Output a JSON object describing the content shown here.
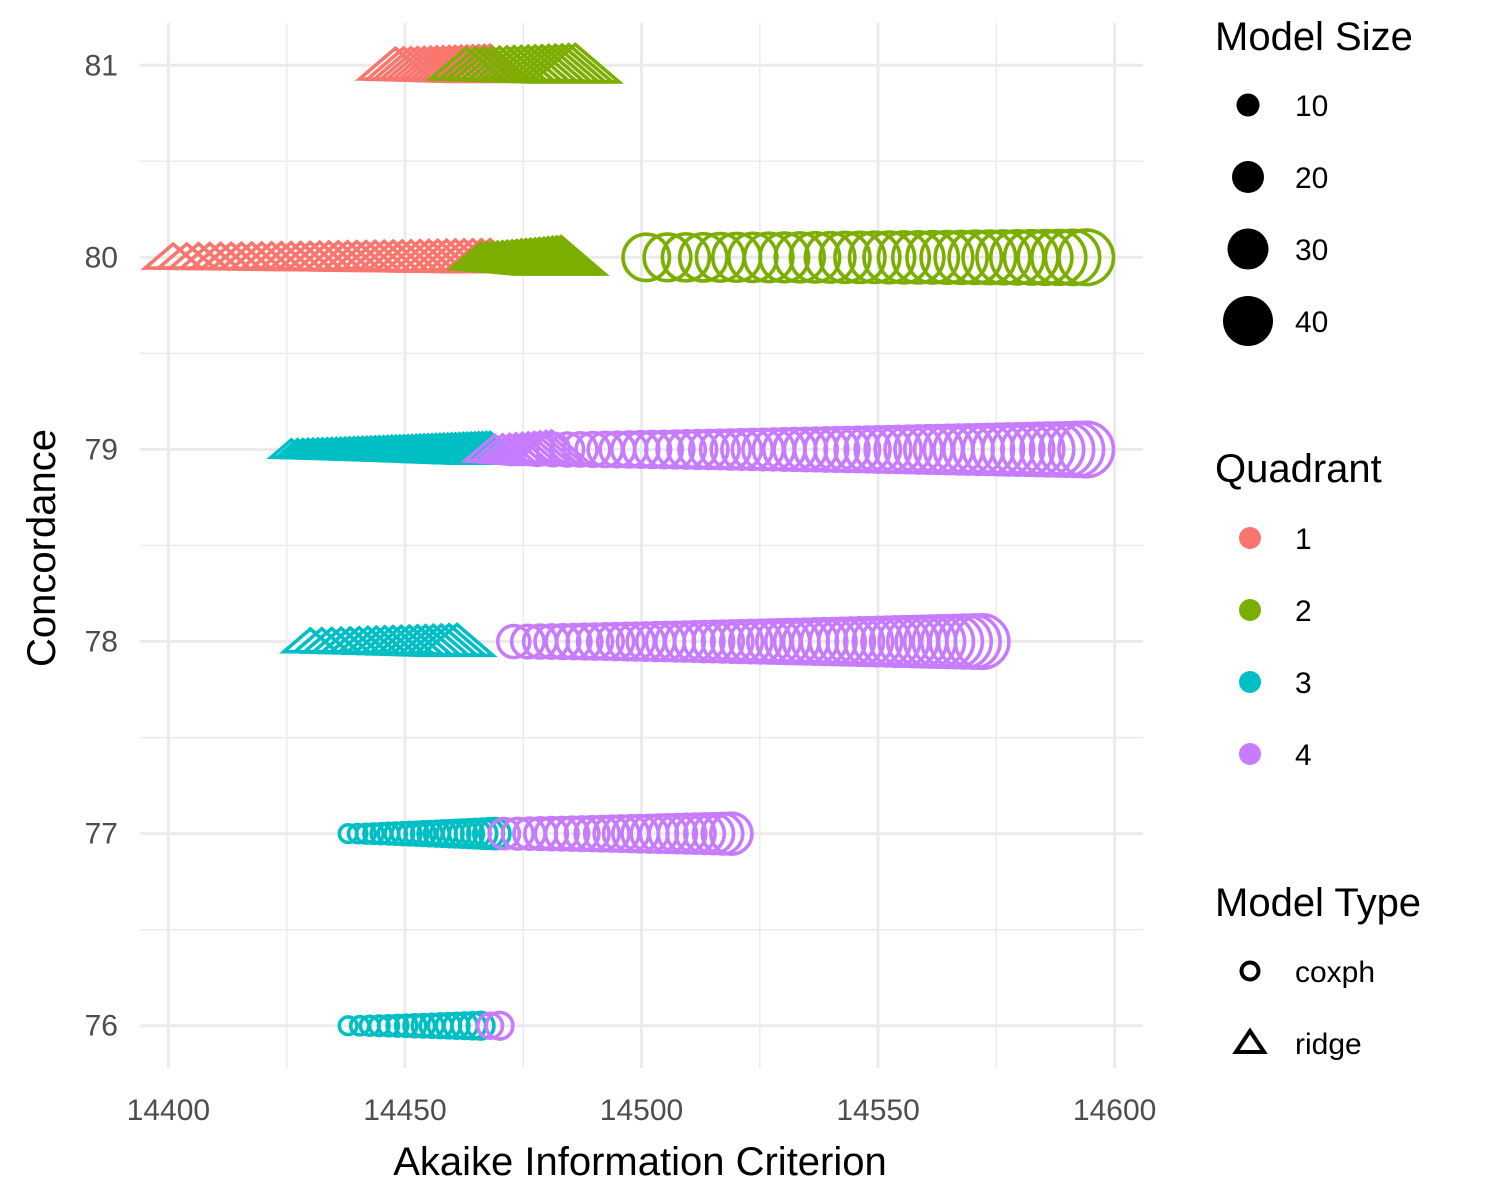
{
  "chart_data": {
    "type": "scatter",
    "title": "",
    "xlabel": "Akaike Information Criterion",
    "ylabel": "Concordance",
    "xlim": [
      14394,
      14606
    ],
    "ylim": [
      75.78,
      81.22
    ],
    "x_ticks": [
      14400,
      14450,
      14500,
      14550,
      14600
    ],
    "y_ticks": [
      76,
      77,
      78,
      79,
      80,
      81
    ],
    "grid": true,
    "legend_position": "right",
    "colors": {
      "1": "#F8766D",
      "2": "#7CAE00",
      "3": "#00BFC4",
      "4": "#C77CFF"
    },
    "legends": {
      "size": {
        "title": "Model Size",
        "entries": [
          "10",
          "20",
          "30",
          "40"
        ],
        "values": [
          10,
          20,
          30,
          40
        ]
      },
      "color": {
        "title": "Quadrant",
        "entries": [
          "1",
          "2",
          "3",
          "4"
        ]
      },
      "shape": {
        "title": "Model Type",
        "entries": [
          "coxph",
          "ridge"
        ]
      }
    },
    "series": [
      {
        "quadrant": "1",
        "type": "ridge",
        "y": 81,
        "x_range": [
          14448,
          14468
        ],
        "size_range": [
          30,
          38
        ],
        "n": 16
      },
      {
        "quadrant": "2",
        "type": "ridge",
        "y": 81,
        "x_range": [
          14463,
          14486
        ],
        "size_range": [
          30,
          40
        ],
        "n": 16
      },
      {
        "quadrant": "1",
        "type": "ridge",
        "y": 80,
        "x_range": [
          14401,
          14468
        ],
        "size_range": [
          20,
          32
        ],
        "n": 34
      },
      {
        "quadrant": "2",
        "type": "ridge",
        "y": 80,
        "x_range": [
          14466,
          14483
        ],
        "size_range": [
          22,
          40
        ],
        "n": 18
      },
      {
        "quadrant": "2",
        "type": "coxph",
        "y": 80,
        "x_range": [
          14501,
          14594
        ],
        "size_range": [
          36,
          45
        ],
        "n": 30
      },
      {
        "quadrant": "3",
        "type": "ridge",
        "y": 79,
        "x_range": [
          14426,
          14468
        ],
        "size_range": [
          10,
          30
        ],
        "n": 48
      },
      {
        "quadrant": "4",
        "type": "ridge",
        "y": 79,
        "x_range": [
          14469,
          14481
        ],
        "size_range": [
          22,
          34
        ],
        "n": 10
      },
      {
        "quadrant": "4",
        "type": "coxph",
        "y": 79,
        "x_range": [
          14478,
          14594
        ],
        "size_range": [
          20,
          45
        ],
        "n": 52
      },
      {
        "quadrant": "3",
        "type": "ridge",
        "y": 78,
        "x_range": [
          14430,
          14461
        ],
        "size_range": [
          18,
          30
        ],
        "n": 18
      },
      {
        "quadrant": "4",
        "type": "coxph",
        "y": 78,
        "x_range": [
          14473,
          14572
        ],
        "size_range": [
          20,
          44
        ],
        "n": 50
      },
      {
        "quadrant": "3",
        "type": "coxph",
        "y": 77,
        "x_range": [
          14438,
          14469
        ],
        "size_range": [
          4,
          18
        ],
        "n": 22
      },
      {
        "quadrant": "4",
        "type": "coxph",
        "y": 77,
        "x_range": [
          14471,
          14519
        ],
        "size_range": [
          18,
          30
        ],
        "n": 24
      },
      {
        "quadrant": "3",
        "type": "coxph",
        "y": 76,
        "x_range": [
          14438,
          14466
        ],
        "size_range": [
          4,
          14
        ],
        "n": 16
      },
      {
        "quadrant": "4",
        "type": "coxph",
        "y": 76,
        "x_range": [
          14468,
          14470
        ],
        "size_range": [
          12,
          14
        ],
        "n": 2
      }
    ]
  }
}
